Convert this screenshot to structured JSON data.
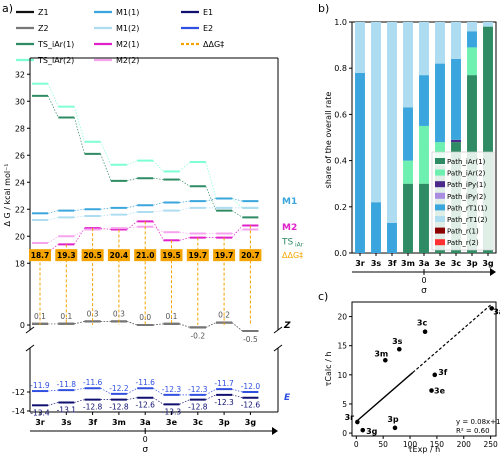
{
  "panels": {
    "a": "a)",
    "b": "b)",
    "c": "c)"
  },
  "colors": {
    "Z1": "#111111",
    "Z2": "#777777",
    "TS_iAr1": "#2e8b63",
    "TS_iAr2": "#7fffd4",
    "M1_1": "#3aa6dd",
    "M1_2": "#aedcf0",
    "M2_1": "#e020c8",
    "M2_2": "#f7a4ef",
    "E1": "#101070",
    "E2": "#3050e0",
    "ddG": "#f5a300",
    "Path_iAr1": "#2e8b63",
    "Path_iAr2": "#6ef0b0",
    "Path_iPy1": "#4b2a8c",
    "Path_iPy2": "#a98de0",
    "Path_rT1_1": "#3aa6dd",
    "Path_rT1_2": "#aedcf0",
    "Path_r1": "#8b0000",
    "Path_r2": "#ff3030"
  },
  "chart_data": [
    {
      "panel": "a",
      "type": "line",
      "categories": [
        "3r",
        "3s",
        "3f",
        "3m",
        "3a",
        "3e",
        "3c",
        "3p",
        "3g"
      ],
      "xlabel": "σ",
      "x_origin_label": "0",
      "ylabel": "Δ G / kcal mol⁻¹",
      "ylim": [
        17.5,
        32.5
      ],
      "yticks": [
        18,
        20,
        22,
        24,
        26,
        28,
        30,
        32
      ],
      "lower_yticks": [
        -12,
        -14
      ],
      "legend": [
        "Z1",
        "Z2",
        "TS_iAr(1)",
        "TS_iAr(2)",
        "M1(1)",
        "M1(2)",
        "M2(1)",
        "M2(2)",
        "E1",
        "E2",
        "ΔΔG‡"
      ],
      "series": [
        {
          "name": "TS_iAr(1)",
          "key": "TS_iAr1",
          "values": [
            30.4,
            28.8,
            26.1,
            24.1,
            24.3,
            24.2,
            23.7,
            21.9,
            21.4
          ]
        },
        {
          "name": "TS_iAr(2)",
          "key": "TS_iAr2",
          "values": [
            31.3,
            29.6,
            27.0,
            25.3,
            25.6,
            24.8,
            25.5,
            22.8,
            22.1
          ]
        },
        {
          "name": "M1(1)",
          "key": "M1_1",
          "values": [
            21.7,
            21.9,
            22.0,
            22.1,
            22.3,
            22.5,
            22.6,
            22.8,
            22.6
          ]
        },
        {
          "name": "M1(2)",
          "key": "M1_2",
          "values": [
            21.2,
            21.4,
            21.5,
            21.6,
            21.8,
            21.9,
            22.1,
            22.1,
            22.1
          ]
        },
        {
          "name": "M2(1)",
          "key": "M2_1",
          "values": [
            18.8,
            19.4,
            20.6,
            20.5,
            21.1,
            19.7,
            19.9,
            19.9,
            20.8
          ]
        },
        {
          "name": "M2(2)",
          "key": "M2_2",
          "values": [
            19.5,
            20.0,
            20.5,
            20.6,
            20.7,
            20.3,
            20.2,
            20.2,
            20.5
          ]
        },
        {
          "name": "Z1",
          "key": "Z1",
          "values": [
            0.1,
            0.1,
            0.3,
            0.3,
            0.0,
            0.1,
            -0.2,
            0.2,
            -0.5
          ]
        },
        {
          "name": "Z2",
          "key": "Z2",
          "values": [
            0.1,
            0.1,
            0.3,
            0.3,
            0.0,
            0.1,
            -0.2,
            0.2,
            -0.5
          ]
        },
        {
          "name": "E1",
          "key": "E1",
          "values": [
            -13.4,
            -13.1,
            -12.8,
            -12.8,
            -12.6,
            -13.3,
            -12.8,
            -12.3,
            -12.6
          ]
        },
        {
          "name": "E2",
          "key": "E2",
          "values": [
            -11.9,
            -11.8,
            -11.6,
            -12.2,
            -11.6,
            -12.3,
            -12.3,
            -11.7,
            -12.0
          ]
        }
      ],
      "ddG_labels": [
        "18.7",
        "19.3",
        "20.5",
        "20.4",
        "21.0",
        "19.5",
        "19.7",
        "19.7",
        "20.7"
      ],
      "z_labels": [
        "0.1",
        "0.1",
        "0.3",
        "0.3",
        "0.0",
        "0.1",
        "-0.2",
        "0.2",
        "-0.5"
      ],
      "e_top_labels": [
        "-11.9",
        "-11.8",
        "-11.6",
        "-12.2",
        "-11.6",
        "-12.3",
        "-12.3",
        "-11.7",
        "-12.0"
      ],
      "e_bottom_labels": [
        "-13.4",
        "-13.1",
        "-12.8",
        "-12.8",
        "-12.6",
        "-13.3",
        "-12.8",
        "-12.3",
        "-12.6"
      ],
      "side_labels": {
        "M1": "M1",
        "M2": "M2",
        "TS": "TS",
        "TS_sub": "iAr",
        "ddG": "ΔΔG‡",
        "Z": "Z",
        "E": "E"
      }
    },
    {
      "panel": "b",
      "type": "bar",
      "stacked": true,
      "categories": [
        "3r",
        "3s",
        "3f",
        "3m",
        "3a",
        "3e",
        "3c",
        "3p",
        "3g"
      ],
      "xlabel": "σ",
      "x_origin_label": "0",
      "ylabel": "share of the overall rate",
      "ylim": [
        0,
        1.0
      ],
      "yticks": [
        "0.0",
        "0.2",
        "0.4",
        "0.6",
        "0.8",
        "1.0"
      ],
      "legend_position": "bottom-right",
      "series": [
        {
          "name": "Path_iAr(1)",
          "key": "Path_iAr1",
          "values": [
            0.0,
            0.0,
            0.0,
            0.3,
            0.3,
            0.38,
            0.48,
            0.77,
            0.98
          ]
        },
        {
          "name": "Path_iAr(2)",
          "key": "Path_iAr2",
          "values": [
            0.0,
            0.0,
            0.0,
            0.1,
            0.25,
            0.1,
            0.0,
            0.12,
            0.0
          ]
        },
        {
          "name": "Path_iPy(1)",
          "key": "Path_iPy1",
          "values": [
            0.0,
            0.0,
            0.0,
            0.0,
            0.0,
            0.0,
            0.01,
            0.0,
            0.0
          ]
        },
        {
          "name": "Path_iPy(2)",
          "key": "Path_iPy2",
          "values": [
            0.0,
            0.0,
            0.0,
            0.0,
            0.0,
            0.0,
            0.0,
            0.0,
            0.0
          ]
        },
        {
          "name": "Path_rT1(1)",
          "key": "Path_rT1_1",
          "values": [
            0.78,
            0.22,
            0.13,
            0.23,
            0.22,
            0.34,
            0.35,
            0.07,
            0.0
          ]
        },
        {
          "name": "Path_rT1(2)",
          "key": "Path_rT1_2",
          "values": [
            0.22,
            0.78,
            0.87,
            0.37,
            0.23,
            0.18,
            0.16,
            0.04,
            0.02
          ]
        },
        {
          "name": "Path_r(1)",
          "key": "Path_r1",
          "values": [
            0.0,
            0.0,
            0.0,
            0.0,
            0.0,
            0.0,
            0.0,
            0.0,
            0.0
          ]
        },
        {
          "name": "Path_r(2)",
          "key": "Path_r2",
          "values": [
            0.0,
            0.0,
            0.0,
            0.0,
            0.0,
            0.0,
            0.0,
            0.0,
            0.0
          ]
        }
      ]
    },
    {
      "panel": "c",
      "type": "scatter",
      "xlabel": "τExp / h",
      "ylabel": "τCalc / h",
      "xlim": [
        -8,
        260
      ],
      "ylim": [
        -0.5,
        22.5
      ],
      "xticks": [
        0,
        50,
        100,
        150,
        200,
        250
      ],
      "yticks": [
        0,
        5,
        10,
        15,
        20
      ],
      "points": [
        {
          "label": "3r",
          "x": 2,
          "y": 1.9
        },
        {
          "label": "3g",
          "x": 12,
          "y": 0.5
        },
        {
          "label": "3p",
          "x": 72,
          "y": 0.9
        },
        {
          "label": "3m",
          "x": 54,
          "y": 12.5
        },
        {
          "label": "3s",
          "x": 80,
          "y": 14.4
        },
        {
          "label": "3c",
          "x": 128,
          "y": 17.4
        },
        {
          "label": "3f",
          "x": 146,
          "y": 10.0
        },
        {
          "label": "3e",
          "x": 140,
          "y": 7.3
        },
        {
          "label": "3a",
          "x": 252,
          "y": 21.4
        }
      ],
      "fit": {
        "slope": 0.08,
        "intercept": 1.99,
        "x_range": [
          0,
          252
        ]
      },
      "equation": "y = 0.08x+1.99",
      "r2": "R² = 0.60"
    }
  ]
}
